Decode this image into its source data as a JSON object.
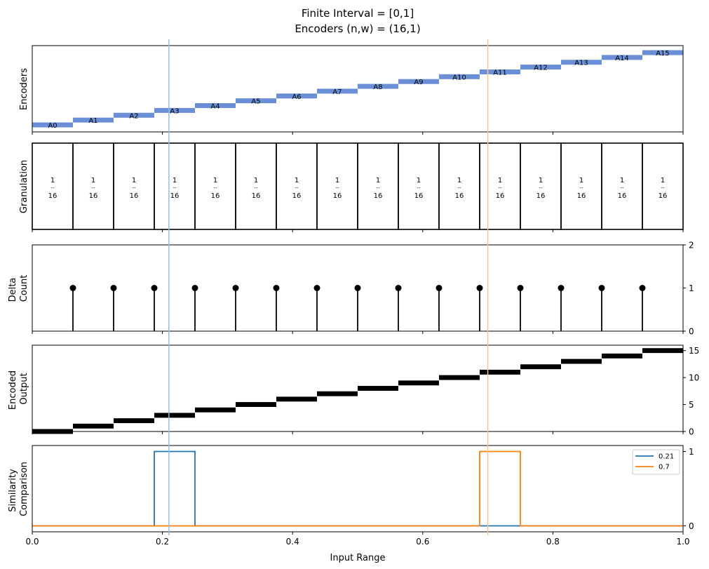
{
  "title_line1": "Finite Interval = [0,1]",
  "title_line2": "Encoders (n,w) = (16,1)",
  "colors": {
    "encoder_bar": "#6a8fd6",
    "marker_1": "#1f77b4",
    "marker_2": "#ff7f0e",
    "marker_1_line": "#8fbde3",
    "marker_2_line": "#fdc48f",
    "black": "#000000"
  },
  "chart_data": [
    {
      "panel": "encoders",
      "type": "bar",
      "ylabel": "Encoders",
      "xlim": [
        0,
        1
      ],
      "labels": [
        "A0",
        "A1",
        "A2",
        "A3",
        "A4",
        "A5",
        "A6",
        "A7",
        "A8",
        "A9",
        "A10",
        "A11",
        "A12",
        "A13",
        "A14",
        "A15"
      ],
      "x_start": [
        0,
        0.0625,
        0.125,
        0.1875,
        0.25,
        0.3125,
        0.375,
        0.4375,
        0.5,
        0.5625,
        0.625,
        0.6875,
        0.75,
        0.8125,
        0.875,
        0.9375
      ],
      "width": 0.0625,
      "level": [
        0,
        1,
        2,
        3,
        4,
        5,
        6,
        7,
        8,
        9,
        10,
        11,
        12,
        13,
        14,
        15
      ],
      "ylim": [
        -0.5,
        15.5
      ]
    },
    {
      "panel": "granulation",
      "type": "bar",
      "ylabel": "Granulation",
      "xlim": [
        0,
        1
      ],
      "boundaries": [
        0,
        0.0625,
        0.125,
        0.1875,
        0.25,
        0.3125,
        0.375,
        0.4375,
        0.5,
        0.5625,
        0.625,
        0.6875,
        0.75,
        0.8125,
        0.875,
        0.9375,
        1
      ],
      "fraction_numerator": "1",
      "fraction_rule": "--",
      "fraction_denominator": "16"
    },
    {
      "panel": "delta_count",
      "type": "stem",
      "ylabel": "Delta Count",
      "xlim": [
        0,
        1
      ],
      "ylim": [
        0,
        2
      ],
      "yticks": [
        "0",
        "1",
        "2"
      ],
      "x": [
        0.0625,
        0.125,
        0.1875,
        0.25,
        0.3125,
        0.375,
        0.4375,
        0.5,
        0.5625,
        0.625,
        0.6875,
        0.75,
        0.8125,
        0.875,
        0.9375
      ],
      "y": [
        1,
        1,
        1,
        1,
        1,
        1,
        1,
        1,
        1,
        1,
        1,
        1,
        1,
        1,
        1
      ]
    },
    {
      "panel": "encoded_output",
      "type": "step",
      "ylabel": "Encoded Output",
      "xlim": [
        0,
        1
      ],
      "ylim": [
        0,
        16
      ],
      "yticks": [
        "0",
        "5",
        "10",
        "15"
      ],
      "x_start": [
        0,
        0.0625,
        0.125,
        0.1875,
        0.25,
        0.3125,
        0.375,
        0.4375,
        0.5,
        0.5625,
        0.625,
        0.6875,
        0.75,
        0.8125,
        0.875,
        0.9375
      ],
      "width": 0.0625,
      "values": [
        0,
        1,
        2,
        3,
        4,
        5,
        6,
        7,
        8,
        9,
        10,
        11,
        12,
        13,
        14,
        15
      ]
    },
    {
      "panel": "similarity",
      "type": "line",
      "ylabel": "Similarity Comparison",
      "xlabel": "Input Range",
      "xlim": [
        0,
        1
      ],
      "ylim": [
        -0.08,
        1.08
      ],
      "yticks": [
        "0",
        "1"
      ],
      "xticks": [
        "0.0",
        "0.2",
        "0.4",
        "0.6",
        "0.8",
        "1.0"
      ],
      "legend_position": "top-right",
      "series": [
        {
          "name": "0.21",
          "marker_x": 0.21,
          "x": [
            0,
            0.1875,
            0.1875,
            0.25,
            0.25,
            1
          ],
          "y": [
            0,
            0,
            1,
            1,
            0,
            0
          ]
        },
        {
          "name": "0.7",
          "marker_x": 0.7,
          "x": [
            0,
            0.6875,
            0.6875,
            0.75,
            0.75,
            1
          ],
          "y": [
            0,
            0,
            1,
            1,
            0,
            0
          ]
        }
      ]
    }
  ]
}
